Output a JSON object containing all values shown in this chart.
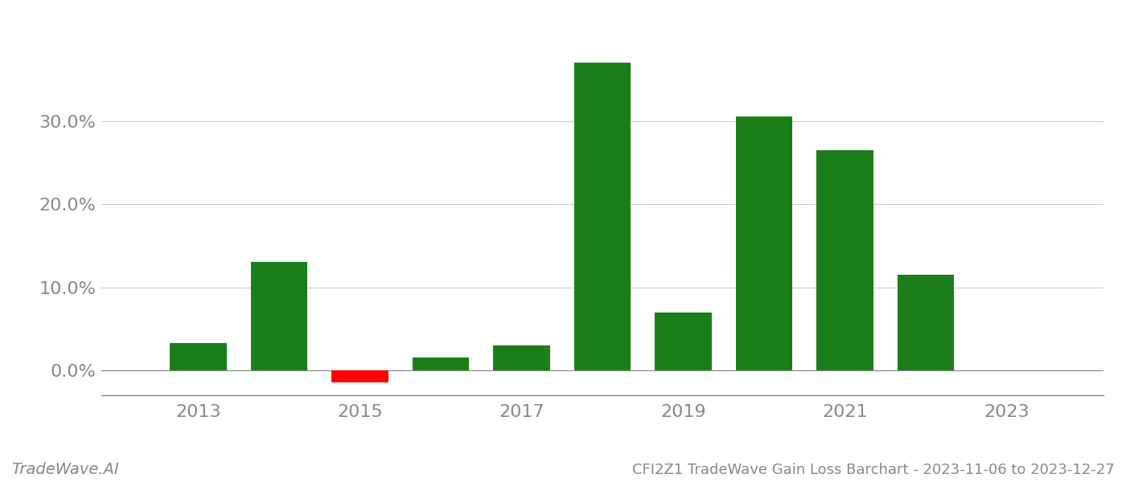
{
  "years": [
    2013,
    2014,
    2015,
    2016,
    2017,
    2018,
    2019,
    2020,
    2021,
    2022
  ],
  "values": [
    0.033,
    0.13,
    -0.015,
    0.015,
    0.03,
    0.37,
    0.07,
    0.305,
    0.265,
    0.115
  ],
  "positive_color": "#1a7e1a",
  "negative_color": "#ff0000",
  "background_color": "#ffffff",
  "grid_color": "#cccccc",
  "title": "CFI2Z1 TradeWave Gain Loss Barchart - 2023-11-06 to 2023-12-27",
  "watermark": "TradeWave.AI",
  "ylim_min": -0.03,
  "ylim_max": 0.405,
  "bar_width": 0.7,
  "tick_fontsize": 16,
  "watermark_fontsize": 14,
  "footer_fontsize": 13,
  "xtick_years": [
    2013,
    2015,
    2017,
    2019,
    2021,
    2023
  ],
  "yticks": [
    0.0,
    0.1,
    0.2,
    0.3
  ],
  "xlim_left": 2011.8,
  "xlim_right": 2024.2
}
